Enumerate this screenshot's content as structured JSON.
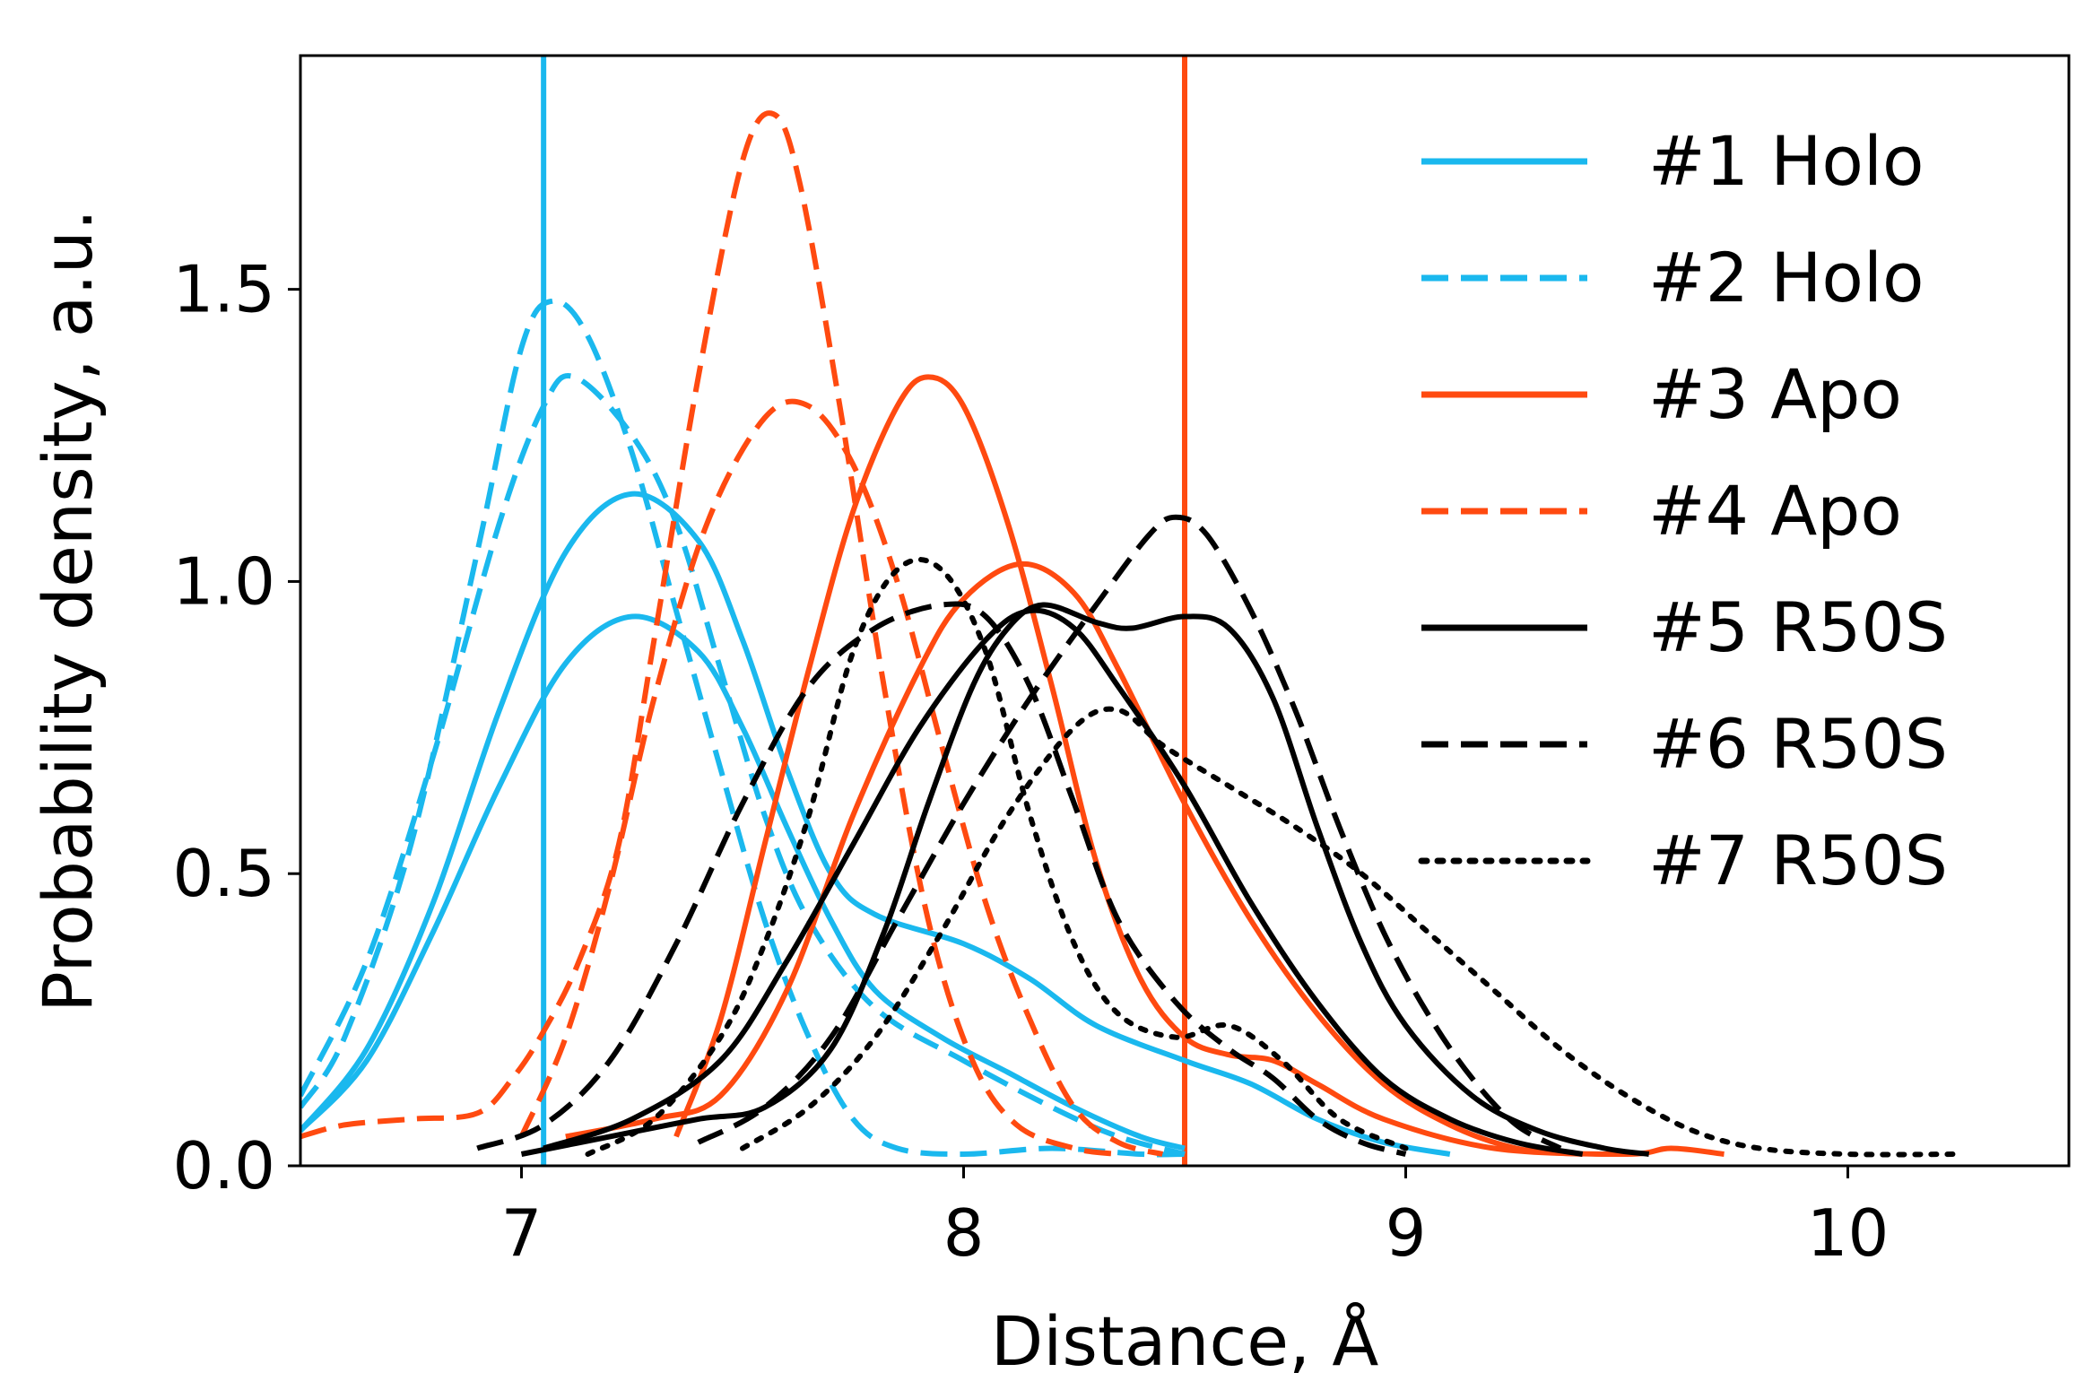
{
  "chart_data": {
    "type": "line",
    "title": "",
    "xlabel": "Distance, Å",
    "ylabel": "Probability density, a.u.",
    "xlim": [
      6.5,
      10.5
    ],
    "ylim": [
      0,
      1.9
    ],
    "x_ticks": [
      7,
      8,
      9,
      10
    ],
    "x_tick_labels": [
      "7",
      "8",
      "9",
      "10"
    ],
    "y_ticks": [
      0,
      0.5,
      1.0,
      1.5
    ],
    "y_tick_labels": [
      "0.0",
      "0.5",
      "1.0",
      "1.5"
    ],
    "grid": false,
    "legend_position": "top-right",
    "colors": {
      "holo": "#1ab8ee",
      "apo": "#ff4a10",
      "r50s": "#000000"
    },
    "legend": [
      {
        "label": "#1 Holo",
        "color": "#1ab8ee",
        "style": "solid"
      },
      {
        "label": "#2 Holo",
        "color": "#1ab8ee",
        "style": "dashed"
      },
      {
        "label": "#3 Apo",
        "color": "#ff4a10",
        "style": "solid"
      },
      {
        "label": "#4 Apo",
        "color": "#ff4a10",
        "style": "dashed"
      },
      {
        "label": "#5 R50S",
        "color": "#000000",
        "style": "solid"
      },
      {
        "label": "#6 R50S",
        "color": "#000000",
        "style": "dashed"
      },
      {
        "label": "#7 R50S",
        "color": "#000000",
        "style": "dotted"
      }
    ],
    "reference_lines": [
      {
        "x": 7.05,
        "color": "#1ab8ee"
      },
      {
        "x": 8.5,
        "color": "#ff4a10"
      }
    ],
    "series": [
      {
        "name": "#1 Holo",
        "color": "#1ab8ee",
        "style": "solid",
        "points": [
          [
            6.5,
            0.06
          ],
          [
            6.65,
            0.2
          ],
          [
            6.8,
            0.45
          ],
          [
            6.95,
            0.78
          ],
          [
            7.1,
            1.05
          ],
          [
            7.25,
            1.15
          ],
          [
            7.4,
            1.07
          ],
          [
            7.5,
            0.9
          ],
          [
            7.6,
            0.68
          ],
          [
            7.7,
            0.5
          ],
          [
            7.8,
            0.43
          ],
          [
            8.0,
            0.38
          ],
          [
            8.15,
            0.32
          ],
          [
            8.3,
            0.24
          ],
          [
            8.5,
            0.18
          ],
          [
            8.65,
            0.14
          ],
          [
            8.8,
            0.08
          ],
          [
            8.95,
            0.04
          ],
          [
            9.1,
            0.02
          ]
        ]
      },
      {
        "name": "#1 Holo",
        "color": "#1ab8ee",
        "style": "solid",
        "points": [
          [
            6.5,
            0.06
          ],
          [
            6.65,
            0.18
          ],
          [
            6.8,
            0.4
          ],
          [
            6.95,
            0.65
          ],
          [
            7.1,
            0.86
          ],
          [
            7.25,
            0.94
          ],
          [
            7.4,
            0.88
          ],
          [
            7.5,
            0.75
          ],
          [
            7.6,
            0.58
          ],
          [
            7.7,
            0.42
          ],
          [
            7.8,
            0.3
          ],
          [
            7.95,
            0.22
          ],
          [
            8.1,
            0.16
          ],
          [
            8.25,
            0.1
          ],
          [
            8.4,
            0.05
          ],
          [
            8.5,
            0.03
          ]
        ]
      },
      {
        "name": "#2 Holo",
        "color": "#1ab8ee",
        "style": "dashed",
        "points": [
          [
            6.5,
            0.1
          ],
          [
            6.6,
            0.22
          ],
          [
            6.75,
            0.55
          ],
          [
            6.9,
            1.05
          ],
          [
            7.0,
            1.4
          ],
          [
            7.07,
            1.48
          ],
          [
            7.15,
            1.42
          ],
          [
            7.25,
            1.22
          ],
          [
            7.35,
            0.95
          ],
          [
            7.45,
            0.68
          ],
          [
            7.55,
            0.42
          ],
          [
            7.65,
            0.22
          ],
          [
            7.75,
            0.08
          ],
          [
            7.85,
            0.03
          ],
          [
            8.0,
            0.02
          ],
          [
            8.2,
            0.03
          ],
          [
            8.4,
            0.02
          ],
          [
            8.5,
            0.02
          ]
        ]
      },
      {
        "name": "#2 Holo",
        "color": "#1ab8ee",
        "style": "dashed",
        "points": [
          [
            6.5,
            0.12
          ],
          [
            6.65,
            0.35
          ],
          [
            6.8,
            0.7
          ],
          [
            6.95,
            1.1
          ],
          [
            7.05,
            1.3
          ],
          [
            7.12,
            1.35
          ],
          [
            7.25,
            1.25
          ],
          [
            7.35,
            1.1
          ],
          [
            7.45,
            0.85
          ],
          [
            7.55,
            0.6
          ],
          [
            7.65,
            0.42
          ],
          [
            7.8,
            0.27
          ],
          [
            8.0,
            0.18
          ],
          [
            8.2,
            0.1
          ],
          [
            8.35,
            0.05
          ],
          [
            8.5,
            0.02
          ]
        ]
      },
      {
        "name": "#3 Apo",
        "color": "#ff4a10",
        "style": "solid",
        "points": [
          [
            7.35,
            0.05
          ],
          [
            7.45,
            0.25
          ],
          [
            7.55,
            0.55
          ],
          [
            7.65,
            0.85
          ],
          [
            7.75,
            1.12
          ],
          [
            7.85,
            1.3
          ],
          [
            7.92,
            1.35
          ],
          [
            8.0,
            1.3
          ],
          [
            8.1,
            1.1
          ],
          [
            8.2,
            0.82
          ],
          [
            8.3,
            0.52
          ],
          [
            8.4,
            0.32
          ],
          [
            8.5,
            0.22
          ],
          [
            8.6,
            0.19
          ],
          [
            8.7,
            0.18
          ],
          [
            8.8,
            0.14
          ],
          [
            8.95,
            0.08
          ],
          [
            9.2,
            0.03
          ],
          [
            9.5,
            0.02
          ],
          [
            9.6,
            0.03
          ],
          [
            9.72,
            0.02
          ]
        ]
      },
      {
        "name": "#3 Apo",
        "color": "#ff4a10",
        "style": "solid",
        "points": [
          [
            7.1,
            0.05
          ],
          [
            7.3,
            0.08
          ],
          [
            7.45,
            0.12
          ],
          [
            7.6,
            0.3
          ],
          [
            7.75,
            0.6
          ],
          [
            7.9,
            0.85
          ],
          [
            8.0,
            0.97
          ],
          [
            8.13,
            1.03
          ],
          [
            8.25,
            0.98
          ],
          [
            8.35,
            0.85
          ],
          [
            8.5,
            0.62
          ],
          [
            8.65,
            0.42
          ],
          [
            8.8,
            0.26
          ],
          [
            8.95,
            0.14
          ],
          [
            9.1,
            0.07
          ],
          [
            9.25,
            0.03
          ],
          [
            9.4,
            0.02
          ]
        ]
      },
      {
        "name": "#4 Apo",
        "color": "#ff4a10",
        "style": "dashed",
        "points": [
          [
            6.5,
            0.05
          ],
          [
            6.6,
            0.07
          ],
          [
            6.75,
            0.08
          ],
          [
            6.9,
            0.09
          ],
          [
            6.98,
            0.15
          ],
          [
            7.05,
            0.23
          ],
          [
            7.13,
            0.35
          ],
          [
            7.22,
            0.55
          ],
          [
            7.3,
            0.9
          ],
          [
            7.4,
            1.35
          ],
          [
            7.5,
            1.72
          ],
          [
            7.57,
            1.8
          ],
          [
            7.63,
            1.68
          ],
          [
            7.72,
            1.3
          ],
          [
            7.82,
            0.82
          ],
          [
            7.92,
            0.42
          ],
          [
            8.02,
            0.18
          ],
          [
            8.12,
            0.07
          ],
          [
            8.25,
            0.03
          ],
          [
            8.35,
            0.02
          ]
        ]
      },
      {
        "name": "#4 Apo",
        "color": "#ff4a10",
        "style": "dashed",
        "points": [
          [
            7.0,
            0.05
          ],
          [
            7.1,
            0.22
          ],
          [
            7.2,
            0.48
          ],
          [
            7.3,
            0.8
          ],
          [
            7.42,
            1.1
          ],
          [
            7.55,
            1.28
          ],
          [
            7.65,
            1.3
          ],
          [
            7.75,
            1.2
          ],
          [
            7.85,
            1.0
          ],
          [
            7.95,
            0.72
          ],
          [
            8.05,
            0.45
          ],
          [
            8.15,
            0.25
          ],
          [
            8.25,
            0.1
          ],
          [
            8.35,
            0.04
          ],
          [
            8.45,
            0.02
          ]
        ]
      },
      {
        "name": "#5 R50S",
        "color": "#000000",
        "style": "solid",
        "points": [
          [
            7.0,
            0.02
          ],
          [
            7.2,
            0.05
          ],
          [
            7.4,
            0.08
          ],
          [
            7.55,
            0.1
          ],
          [
            7.7,
            0.2
          ],
          [
            7.82,
            0.4
          ],
          [
            7.92,
            0.62
          ],
          [
            8.02,
            0.82
          ],
          [
            8.1,
            0.92
          ],
          [
            8.18,
            0.96
          ],
          [
            8.3,
            0.93
          ],
          [
            8.38,
            0.92
          ],
          [
            8.5,
            0.94
          ],
          [
            8.6,
            0.92
          ],
          [
            8.7,
            0.8
          ],
          [
            8.8,
            0.58
          ],
          [
            8.9,
            0.38
          ],
          [
            9.0,
            0.24
          ],
          [
            9.15,
            0.12
          ],
          [
            9.3,
            0.06
          ],
          [
            9.45,
            0.03
          ],
          [
            9.55,
            0.02
          ]
        ]
      },
      {
        "name": "#5 R50S",
        "color": "#000000",
        "style": "solid",
        "points": [
          [
            7.05,
            0.03
          ],
          [
            7.25,
            0.08
          ],
          [
            7.45,
            0.18
          ],
          [
            7.6,
            0.35
          ],
          [
            7.75,
            0.55
          ],
          [
            7.9,
            0.75
          ],
          [
            8.05,
            0.9
          ],
          [
            8.15,
            0.95
          ],
          [
            8.25,
            0.92
          ],
          [
            8.35,
            0.82
          ],
          [
            8.5,
            0.65
          ],
          [
            8.65,
            0.45
          ],
          [
            8.8,
            0.28
          ],
          [
            8.95,
            0.15
          ],
          [
            9.1,
            0.08
          ],
          [
            9.25,
            0.04
          ],
          [
            9.4,
            0.02
          ]
        ]
      },
      {
        "name": "#6 R50S",
        "color": "#000000",
        "style": "dashed",
        "points": [
          [
            7.4,
            0.04
          ],
          [
            7.55,
            0.1
          ],
          [
            7.7,
            0.22
          ],
          [
            7.85,
            0.42
          ],
          [
            8.0,
            0.62
          ],
          [
            8.15,
            0.8
          ],
          [
            8.3,
            0.96
          ],
          [
            8.42,
            1.08
          ],
          [
            8.48,
            1.11
          ],
          [
            8.55,
            1.08
          ],
          [
            8.65,
            0.95
          ],
          [
            8.75,
            0.78
          ],
          [
            8.85,
            0.58
          ],
          [
            8.95,
            0.4
          ],
          [
            9.05,
            0.26
          ],
          [
            9.15,
            0.15
          ],
          [
            9.25,
            0.07
          ],
          [
            9.35,
            0.03
          ]
        ]
      },
      {
        "name": "#6 R50S",
        "color": "#000000",
        "style": "dashed",
        "points": [
          [
            6.9,
            0.03
          ],
          [
            7.05,
            0.07
          ],
          [
            7.2,
            0.18
          ],
          [
            7.35,
            0.38
          ],
          [
            7.5,
            0.62
          ],
          [
            7.65,
            0.82
          ],
          [
            7.8,
            0.92
          ],
          [
            7.95,
            0.96
          ],
          [
            8.05,
            0.94
          ],
          [
            8.15,
            0.82
          ],
          [
            8.25,
            0.62
          ],
          [
            8.35,
            0.42
          ],
          [
            8.48,
            0.28
          ],
          [
            8.6,
            0.2
          ],
          [
            8.7,
            0.15
          ],
          [
            8.8,
            0.08
          ],
          [
            8.9,
            0.04
          ],
          [
            9.0,
            0.02
          ]
        ]
      },
      {
        "name": "#7 R50S",
        "color": "#000000",
        "style": "dotted",
        "points": [
          [
            7.15,
            0.02
          ],
          [
            7.3,
            0.08
          ],
          [
            7.45,
            0.22
          ],
          [
            7.55,
            0.38
          ],
          [
            7.65,
            0.6
          ],
          [
            7.75,
            0.88
          ],
          [
            7.85,
            1.02
          ],
          [
            7.95,
            1.02
          ],
          [
            8.05,
            0.88
          ],
          [
            8.15,
            0.6
          ],
          [
            8.25,
            0.38
          ],
          [
            8.35,
            0.26
          ],
          [
            8.48,
            0.22
          ],
          [
            8.6,
            0.24
          ],
          [
            8.72,
            0.18
          ],
          [
            8.85,
            0.08
          ],
          [
            9.0,
            0.03
          ]
        ]
      },
      {
        "name": "#7 R50S",
        "color": "#000000",
        "style": "dotted",
        "points": [
          [
            7.5,
            0.03
          ],
          [
            7.65,
            0.1
          ],
          [
            7.8,
            0.22
          ],
          [
            7.95,
            0.4
          ],
          [
            8.1,
            0.6
          ],
          [
            8.25,
            0.75
          ],
          [
            8.35,
            0.78
          ],
          [
            8.45,
            0.72
          ],
          [
            8.6,
            0.65
          ],
          [
            8.75,
            0.58
          ],
          [
            8.9,
            0.5
          ],
          [
            9.05,
            0.4
          ],
          [
            9.2,
            0.3
          ],
          [
            9.35,
            0.2
          ],
          [
            9.5,
            0.12
          ],
          [
            9.65,
            0.06
          ],
          [
            9.8,
            0.03
          ],
          [
            10.0,
            0.02
          ],
          [
            10.25,
            0.02
          ]
        ]
      }
    ]
  }
}
